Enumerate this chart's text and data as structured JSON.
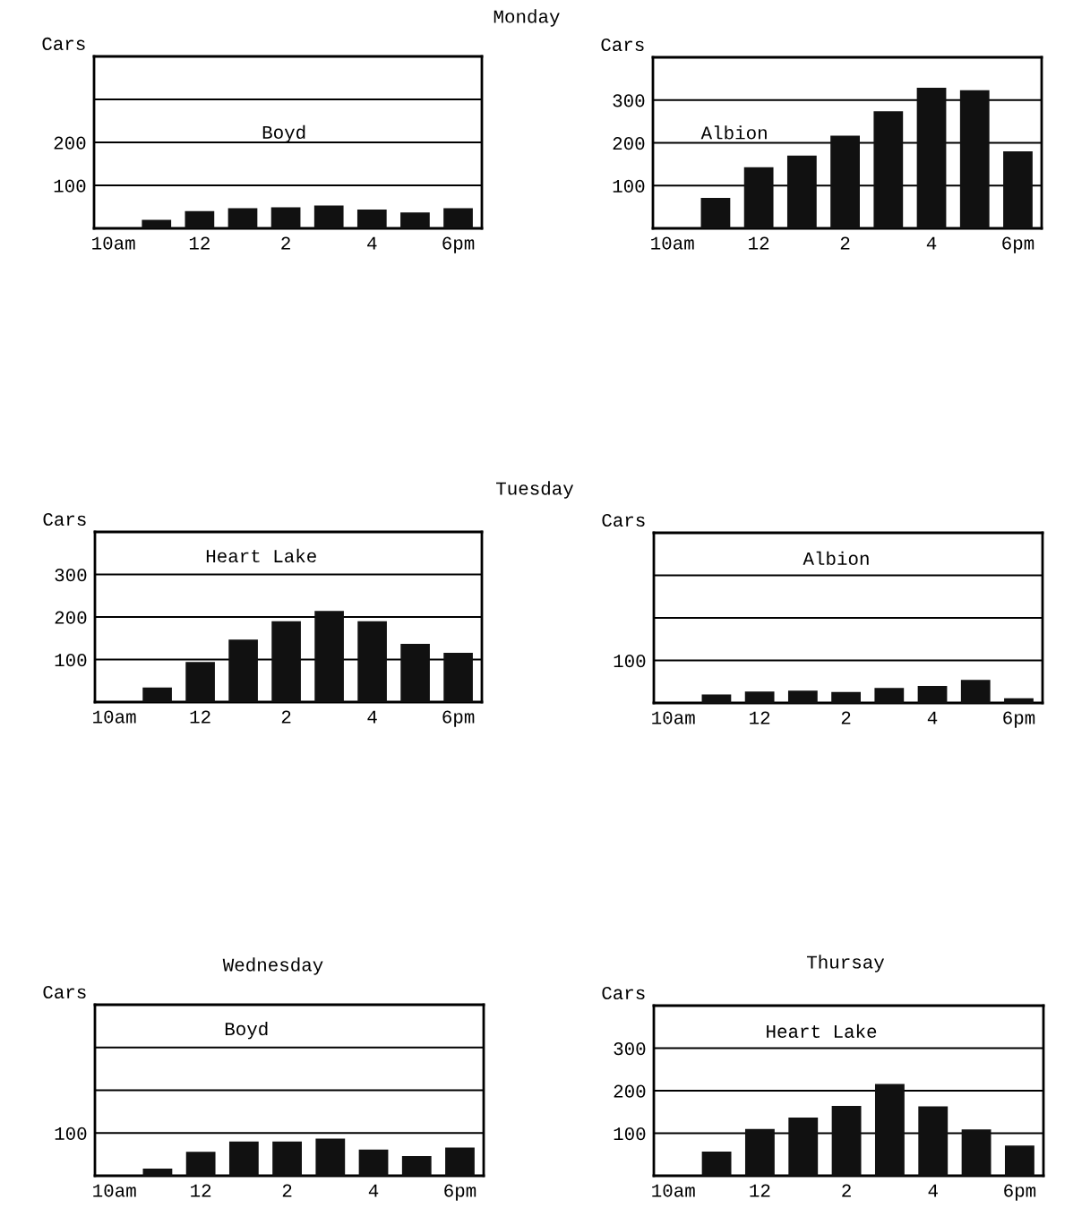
{
  "chart_data": [
    {
      "type": "bar",
      "ylabel": "Cars",
      "annotations": [
        "Monday",
        "Boyd"
      ],
      "categories": [
        "10am",
        null,
        "12",
        null,
        "2",
        null,
        "4",
        null,
        "6pm"
      ],
      "values": [
        null,
        20,
        40,
        47,
        49,
        53,
        44,
        37,
        47
      ],
      "color": "#111111",
      "ylim": [
        0,
        400
      ],
      "yticks": [
        100,
        200
      ],
      "ref_lines": [
        {
          "axis": "y",
          "value": 300
        }
      ],
      "grid": "y"
    },
    {
      "type": "bar",
      "ylabel": "Cars",
      "annotations": [
        "Albion"
      ],
      "categories": [
        "10am",
        null,
        "12",
        null,
        "2",
        null,
        "4",
        null,
        "6pm"
      ],
      "values": [
        null,
        71,
        143,
        170,
        217,
        274,
        329,
        323,
        180
      ],
      "color": "#111111",
      "ylim": [
        0,
        400
      ],
      "yticks": [
        100,
        200,
        300
      ],
      "grid": "y"
    },
    {
      "type": "bar",
      "ylabel": "Cars",
      "annotations": [
        "Tuesday",
        "Heart Lake"
      ],
      "categories": [
        "10am",
        null,
        "12",
        null,
        "2",
        null,
        "4",
        null,
        "6pm"
      ],
      "values": [
        null,
        34,
        94,
        147,
        190,
        214,
        190,
        137,
        116
      ],
      "color": "#111111",
      "ylim": [
        0,
        400
      ],
      "yticks": [
        100,
        200,
        300
      ],
      "grid": "y"
    },
    {
      "type": "bar",
      "ylabel": "Cars",
      "annotations": [
        "Albion"
      ],
      "categories": [
        "10am",
        null,
        "12",
        null,
        "2",
        null,
        "4",
        null,
        "6pm"
      ],
      "values": [
        null,
        20,
        27,
        29,
        26,
        35,
        40,
        54,
        11
      ],
      "color": "#111111",
      "ylim": [
        0,
        400
      ],
      "yticks": [
        100
      ],
      "ref_lines": [
        {
          "axis": "y",
          "value": 200
        },
        {
          "axis": "y",
          "value": 300
        }
      ],
      "grid": "y"
    },
    {
      "type": "bar",
      "title": "Wednesday",
      "ylabel": "Cars",
      "annotations": [
        "Boyd"
      ],
      "categories": [
        "10am",
        null,
        "12",
        null,
        "2",
        null,
        "4",
        null,
        "6pm"
      ],
      "values": [
        null,
        17,
        56,
        80,
        80,
        87,
        61,
        46,
        66
      ],
      "color": "#111111",
      "ylim": [
        0,
        400
      ],
      "yticks": [
        100
      ],
      "ref_lines": [
        {
          "axis": "y",
          "value": 200
        },
        {
          "axis": "y",
          "value": 300
        }
      ],
      "grid": "y"
    },
    {
      "type": "bar",
      "title": "Thursay",
      "ylabel": "Cars",
      "annotations": [
        "Heart Lake"
      ],
      "categories": [
        "10am",
        null,
        "12",
        null,
        "2",
        null,
        "4",
        null,
        "6pm"
      ],
      "values": [
        null,
        57,
        110,
        137,
        164,
        216,
        163,
        109,
        71
      ],
      "color": "#111111",
      "ylim": [
        0,
        400
      ],
      "yticks": [
        100,
        200,
        300
      ],
      "grid": "y"
    }
  ]
}
